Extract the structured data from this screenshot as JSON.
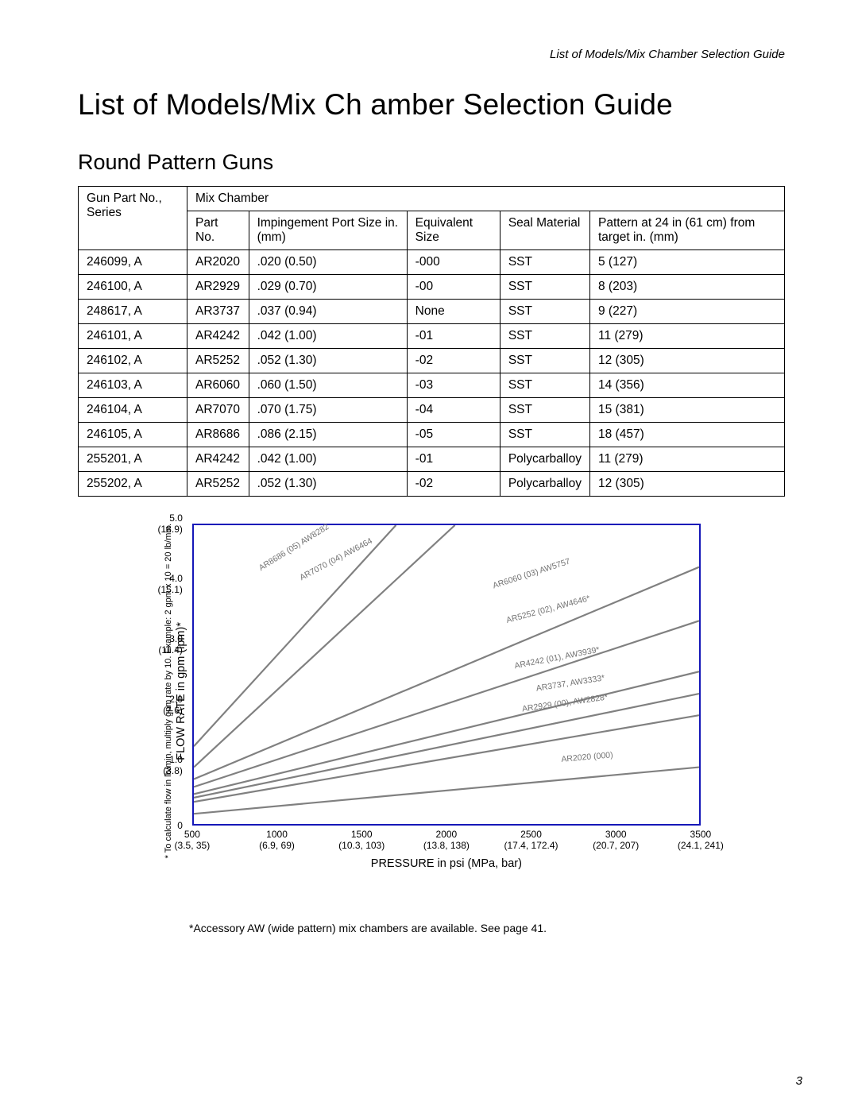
{
  "running_head": "List of Models/Mix Chamber Selection Guide",
  "main_title": "List of Models/Mix Ch   amber Selection Guide",
  "sub_title": "Round Pattern Guns",
  "table": {
    "span_header": "Mix Chamber",
    "columns": [
      "Gun Part No., Series",
      "Part No.",
      "Impingement Port Size in. (mm)",
      "Equivalent Size",
      "Seal Material",
      "Pattern at 24 in (61 cm) from target in. (mm)"
    ],
    "rows": [
      [
        "246099, A",
        "AR2020",
        ".020 (0.50)",
        "-000",
        "SST",
        "5 (127)"
      ],
      [
        "246100, A",
        "AR2929",
        ".029 (0.70)",
        "-00",
        "SST",
        "8 (203)"
      ],
      [
        "248617, A",
        "AR3737",
        ".037 (0.94)",
        "None",
        "SST",
        "9 (227)"
      ],
      [
        "246101, A",
        "AR4242",
        ".042 (1.00)",
        "-01",
        "SST",
        "11 (279)"
      ],
      [
        "246102, A",
        "AR5252",
        ".052 (1.30)",
        "-02",
        "SST",
        "12 (305)"
      ],
      [
        "246103, A",
        "AR6060",
        ".060 (1.50)",
        "-03",
        "SST",
        "14 (356)"
      ],
      [
        "246104, A",
        "AR7070",
        ".070 (1.75)",
        "-04",
        "SST",
        "15 (381)"
      ],
      [
        "246105, A",
        "AR8686",
        ".086 (2.15)",
        "-05",
        "SST",
        "18 (457)"
      ],
      [
        "255201, A",
        "AR4242",
        ".042 (1.00)",
        "-01",
        "Polycarballoy",
        "11 (279)"
      ],
      [
        "255202, A",
        "AR5252",
        ".052 (1.30)",
        "-02",
        "Polycarballoy",
        "12 (305)"
      ]
    ]
  },
  "chart": {
    "type": "line",
    "plot_border_color": "#1517b8",
    "line_color": "#808080",
    "line_width": 2.2,
    "background": "#ffffff",
    "xlim": [
      500,
      3500
    ],
    "ylim": [
      0,
      5
    ],
    "xlabel": "PRESSURE in psi (MPa, bar)",
    "ylabel": "FLOW RATE in gpm (lpm)*",
    "ynote": "* To calculate flow in lb/min, multiply gpm rate by 10.\nExample: 2 gpm x 10 = 20 lb/min.",
    "yticks": [
      {
        "v": 0,
        "label": "0"
      },
      {
        "v": 1,
        "label": "1.0\n(3.8)"
      },
      {
        "v": 2,
        "label": "2.0\n(7.6)"
      },
      {
        "v": 3,
        "label": "3.0\n(11.4)"
      },
      {
        "v": 4,
        "label": "4.0\n(15.1)"
      },
      {
        "v": 5,
        "label": "5.0\n(18.9)"
      }
    ],
    "xticks": [
      {
        "v": 500,
        "label": "500\n(3.5, 35)"
      },
      {
        "v": 1000,
        "label": "1000\n(6.9, 69)"
      },
      {
        "v": 1500,
        "label": "1500\n(10.3, 103)"
      },
      {
        "v": 2000,
        "label": "2000\n(13.8, 138)"
      },
      {
        "v": 2500,
        "label": "2500\n(17.4, 172.4)"
      },
      {
        "v": 3000,
        "label": "3000\n(20.7, 207)"
      },
      {
        "v": 3500,
        "label": "3500\n(24.1, 241)"
      }
    ],
    "series": [
      {
        "label": "AR8686 (05) AW8282",
        "p1": [
          500,
          1.3
        ],
        "p2": [
          1700,
          5.0
        ],
        "lx": 1100,
        "ly": 4.55,
        "rot": -32
      },
      {
        "label": "AR7070 (04) AW6464",
        "p1": [
          500,
          0.95
        ],
        "p2": [
          2050,
          5.0
        ],
        "lx": 1350,
        "ly": 4.35,
        "rot": -28
      },
      {
        "label": "AR6060 (03) AW5757",
        "p1": [
          500,
          0.75
        ],
        "p2": [
          3500,
          4.3
        ],
        "lx": 2500,
        "ly": 4.12,
        "rot": -18
      },
      {
        "label": "AR5252 (02), AW4646*",
        "p1": [
          500,
          0.62
        ],
        "p2": [
          3500,
          3.4
        ],
        "lx": 2600,
        "ly": 3.52,
        "rot": -15
      },
      {
        "label": "AR4242 (01), AW3939*",
        "p1": [
          500,
          0.5
        ],
        "p2": [
          3500,
          2.55
        ],
        "lx": 2650,
        "ly": 2.72,
        "rot": -11
      },
      {
        "label": "AR3737, AW3333*",
        "p1": [
          500,
          0.44
        ],
        "p2": [
          3500,
          2.18
        ],
        "lx": 2730,
        "ly": 2.3,
        "rot": -9
      },
      {
        "label": "AR2929 (00), AW2828*",
        "p1": [
          500,
          0.37
        ],
        "p2": [
          3500,
          1.82
        ],
        "lx": 2700,
        "ly": 1.98,
        "rot": -8
      },
      {
        "label": "AR2020 (000)",
        "p1": [
          500,
          0.17
        ],
        "p2": [
          3500,
          0.95
        ],
        "lx": 2830,
        "ly": 1.08,
        "rot": -5
      }
    ]
  },
  "footnote": "*Accessory AW (wide pattern) mix chambers are available. See page 41.",
  "pagenum": "3"
}
